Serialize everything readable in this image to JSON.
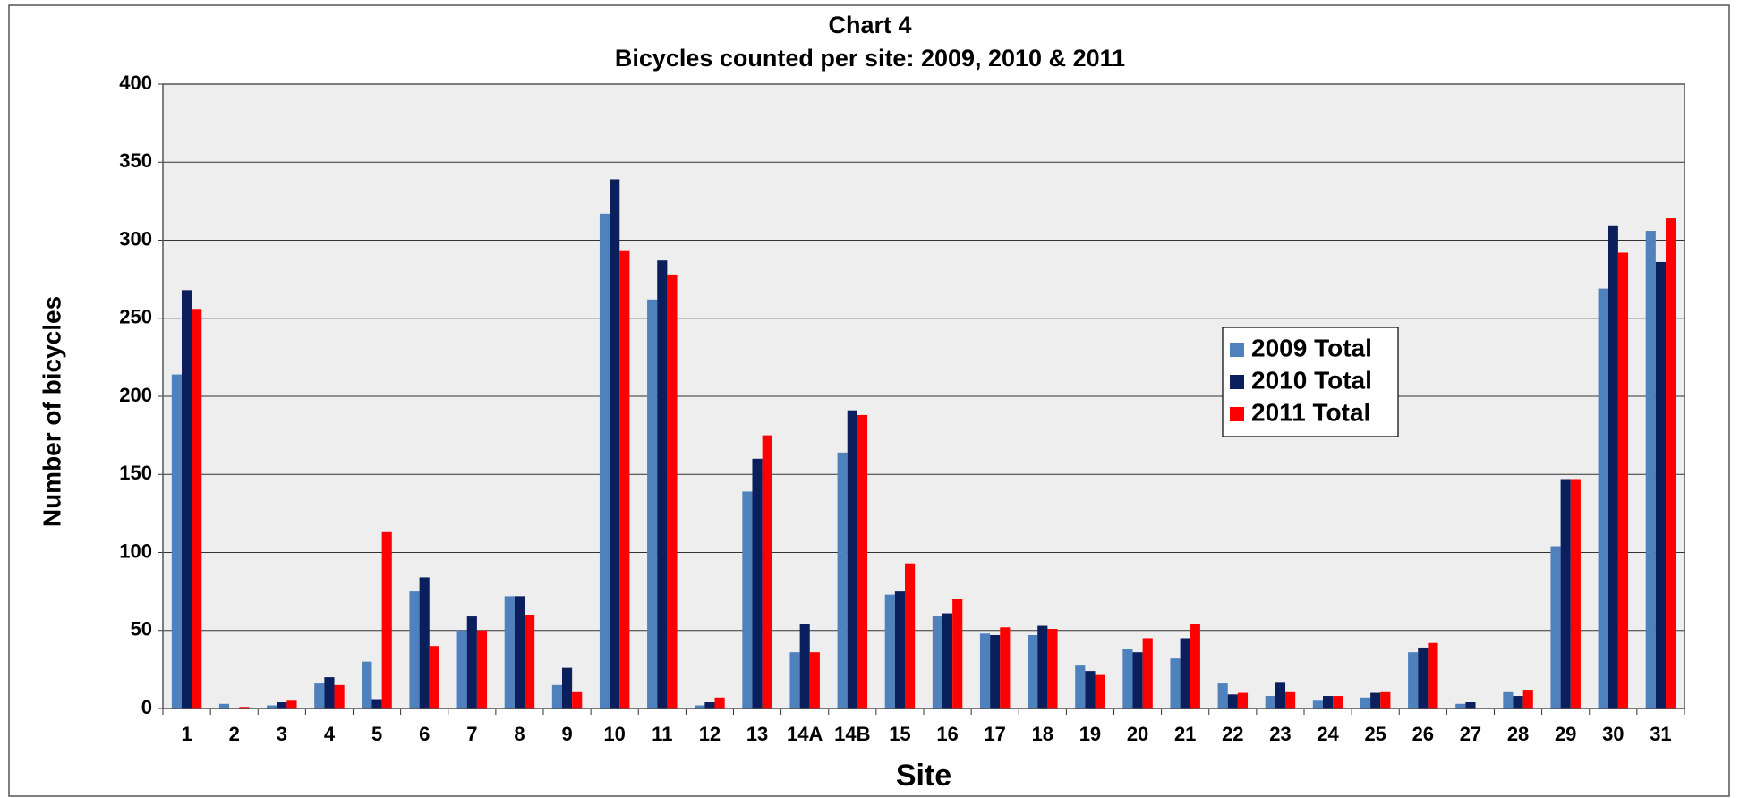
{
  "chart_data": {
    "type": "bar",
    "title": "Chart 4",
    "subtitle": "Bicycles counted per site: 2009, 2010 & 2011",
    "x_label": "Site",
    "y_label": "Number of bicycles",
    "categories": [
      "1",
      "2",
      "3",
      "4",
      "5",
      "6",
      "7",
      "8",
      "9",
      "10",
      "11",
      "12",
      "13",
      "14A",
      "14B",
      "15",
      "16",
      "17",
      "18",
      "19",
      "20",
      "21",
      "22",
      "23",
      "24",
      "25",
      "26",
      "27",
      "28",
      "29",
      "30",
      "31"
    ],
    "series": [
      {
        "name": "2009 Total",
        "color": "#4f81bd",
        "values": [
          214,
          3,
          2,
          16,
          30,
          75,
          50,
          72,
          15,
          317,
          262,
          2,
          139,
          36,
          164,
          73,
          59,
          48,
          47,
          28,
          38,
          32,
          16,
          8,
          5,
          7,
          36,
          3,
          11,
          104,
          269,
          306
        ]
      },
      {
        "name": "2010 Total",
        "color": "#0b1f5c",
        "values": [
          268,
          0,
          4,
          20,
          6,
          84,
          59,
          72,
          26,
          339,
          287,
          4,
          160,
          54,
          191,
          75,
          61,
          47,
          53,
          24,
          36,
          45,
          9,
          17,
          8,
          10,
          39,
          4,
          8,
          147,
          309,
          286
        ]
      },
      {
        "name": "2011 Total",
        "color": "#ff0000",
        "values": [
          256,
          1,
          5,
          15,
          113,
          40,
          50,
          60,
          11,
          293,
          278,
          7,
          175,
          36,
          188,
          93,
          70,
          52,
          51,
          22,
          45,
          54,
          10,
          11,
          8,
          11,
          42,
          0,
          12,
          147,
          292,
          314
        ]
      }
    ],
    "ylim": [
      0,
      400
    ],
    "yticks": [
      0,
      50,
      100,
      150,
      200,
      250,
      300,
      350,
      400
    ],
    "grid": true
  }
}
